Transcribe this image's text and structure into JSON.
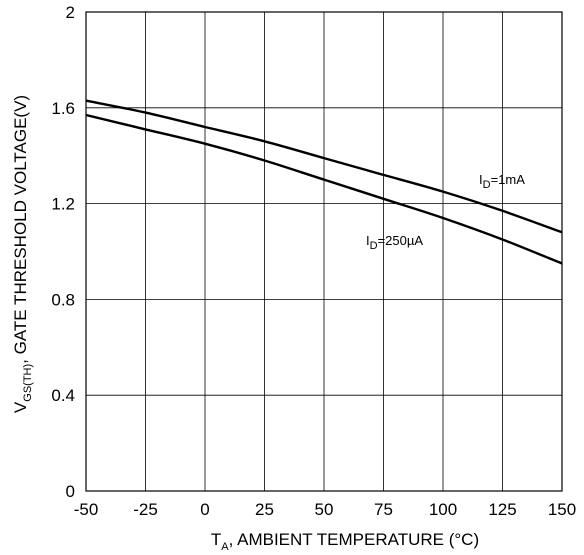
{
  "chart_data": {
    "type": "line",
    "title": "",
    "xlabel": {
      "main": "T",
      "sub": "A",
      "rest": ", AMBIENT TEMPERATURE (°C)"
    },
    "ylabel": {
      "main": "V",
      "sub": "GS(TH)",
      "rest": ", GATE THRESHOLD VOLTAGE(V)"
    },
    "xlim": [
      -50,
      150
    ],
    "ylim": [
      0,
      2
    ],
    "xticks": [
      -50,
      -25,
      0,
      25,
      50,
      75,
      100,
      125,
      150
    ],
    "xtick_labels": [
      "-50",
      "-25",
      "0",
      "25",
      "50",
      "75",
      "100",
      "125",
      "150"
    ],
    "yticks": [
      0,
      0.4,
      0.8,
      1.2,
      1.6,
      2
    ],
    "ytick_labels": [
      "0",
      "0.4",
      "0.8",
      "1.2",
      "1.6",
      "2"
    ],
    "grid": true,
    "legend": "inline",
    "series": [
      {
        "name": "ID=1mA",
        "label": {
          "main": "I",
          "sub": "D",
          "rest": "=1mA"
        },
        "x": [
          -50,
          -25,
          0,
          25,
          50,
          75,
          100,
          125,
          150
        ],
        "y": [
          1.63,
          1.58,
          1.52,
          1.46,
          1.39,
          1.32,
          1.25,
          1.17,
          1.08
        ]
      },
      {
        "name": "ID=250µA",
        "label": {
          "main": "I",
          "sub": "D",
          "rest": "=250µA"
        },
        "x": [
          -50,
          -25,
          0,
          25,
          50,
          75,
          100,
          125,
          150
        ],
        "y": [
          1.57,
          1.51,
          1.45,
          1.38,
          1.3,
          1.22,
          1.14,
          1.05,
          0.95
        ]
      }
    ]
  }
}
